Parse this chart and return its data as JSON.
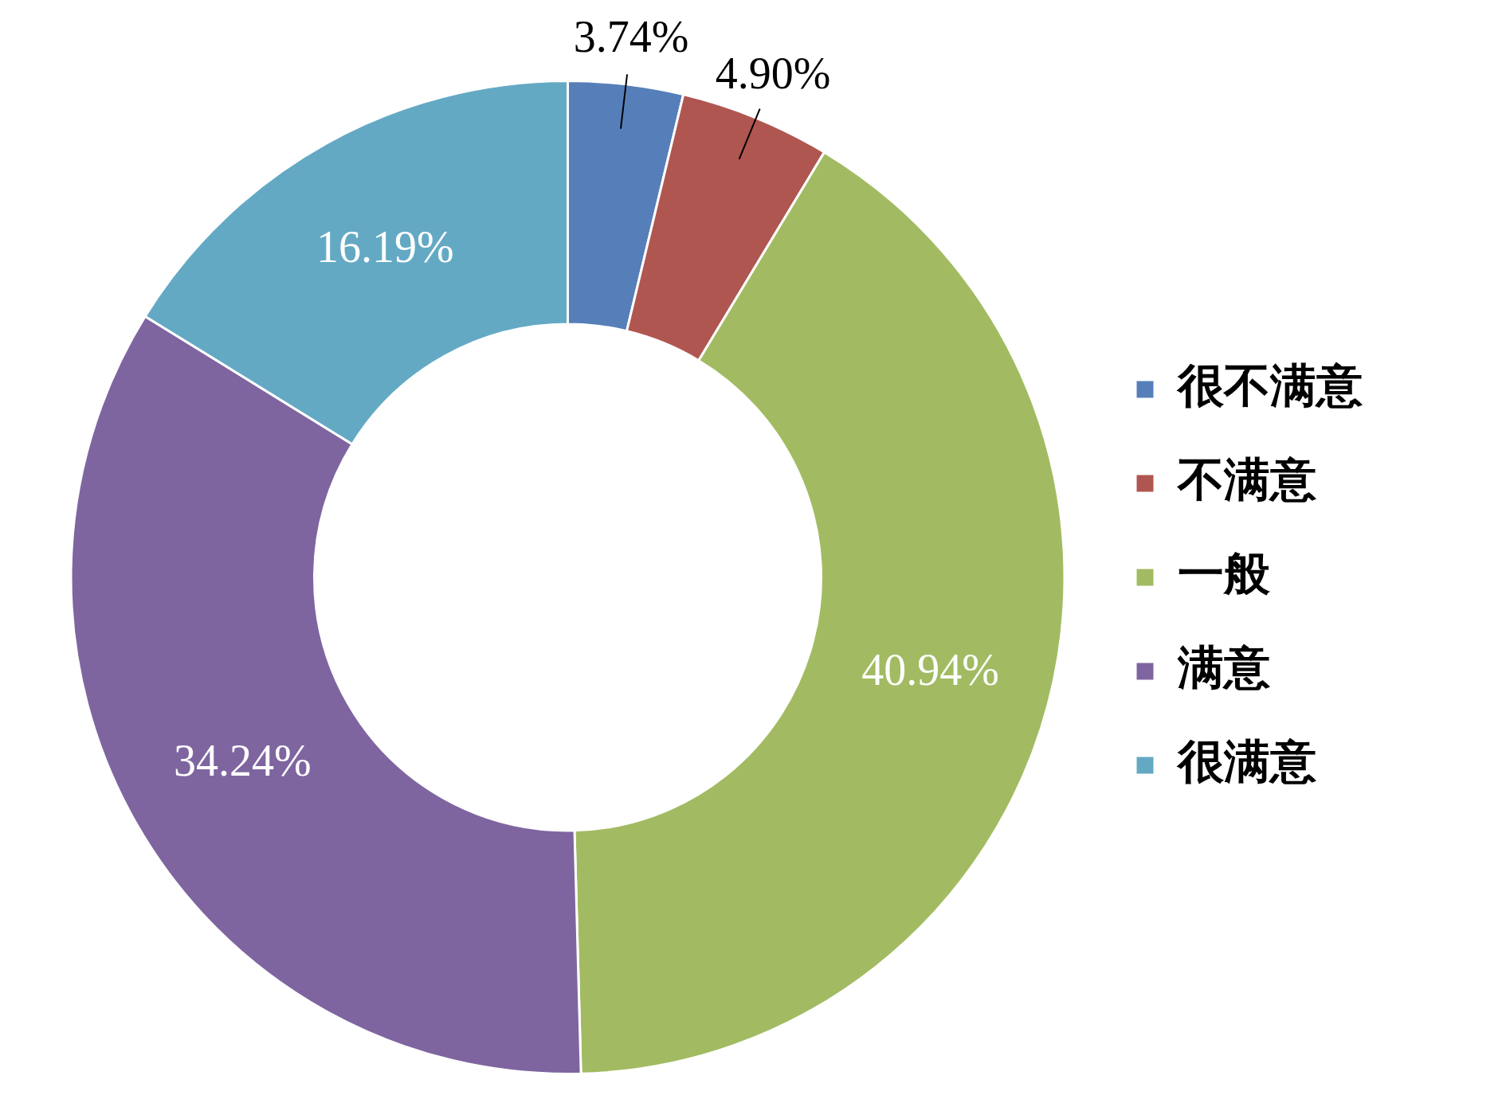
{
  "chart_data": {
    "type": "donut",
    "categories": [
      "很不满意",
      "不满意",
      "一般",
      "满意",
      "很满意"
    ],
    "values": [
      3.74,
      4.9,
      40.94,
      34.24,
      16.19
    ],
    "colors": [
      "#567fb9",
      "#b05650",
      "#a2bb62",
      "#7e65a0",
      "#64a9c4"
    ],
    "value_labels": [
      "3.74%",
      "4.90%",
      "40.94%",
      "34.24%",
      "16.19%"
    ],
    "legend": "right"
  }
}
